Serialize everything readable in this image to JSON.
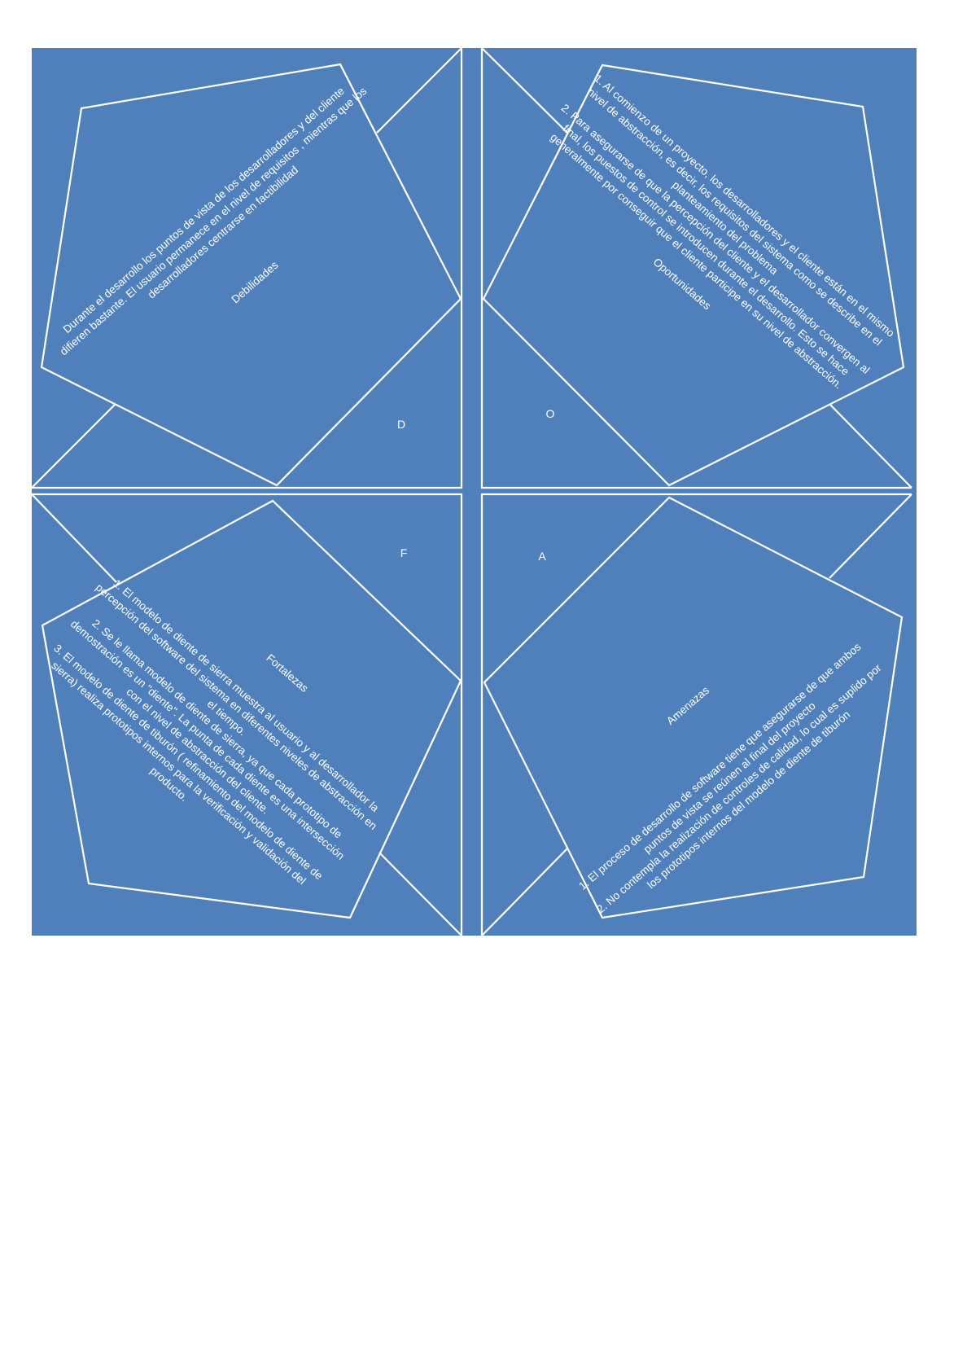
{
  "colors": {
    "background": "#5080BC",
    "lines": "#FFFFFF",
    "page": "#FFFFFF"
  },
  "quadrants": {
    "debilidades": {
      "title": "Debilidades",
      "letter": "D",
      "body": [
        "Durante el desarrollo los  puntos de vista de los desarrolladores y del cliente",
        "difieren bastante. El usuario permanece en el nivel de requisitos , mientras que los",
        "desarrolladores centrarse en factibilidad"
      ]
    },
    "oportunidades": {
      "title": "Oportunidades",
      "letter": "O",
      "body": [
        "1. Al comienzo de un proyecto, los desarrolladores y el cliente están en el mismo",
        "nivel de abstracción, es decir, los requisitos del sistema como se describe en el",
        "planteamiento del problema",
        "2. Para asegurarse de que la percepción del cliente y el desarrollador convergen al",
        "final, los puestos de control se introducen durante el desarrollo. Esto se hace",
        "generalmente por conseguir que el cliente participe en su nivel de abstracción."
      ]
    },
    "fortalezas": {
      "title": "Fortalezas",
      "letter": "F",
      "body": [
        "1. El modelo de diente de sierra muestra al usuario y al desarrollador la",
        "percepción del software del sistema en diferentes niveles de abstracción en",
        "el tiempo.",
        "2. Se le llama modelo de diente de sierra, ya que cada prototipo de",
        "demostración es un \"diente\". La punta de cada diente es una intersección",
        "con el nivel de abstracción del cliente.",
        "3. El modelo de diente de tiburón ( refinamiento del modelo de diente de",
        "sierra) realiza prototipos internos para la verificación y validación del",
        "producto."
      ]
    },
    "amenazas": {
      "title": "Amenazas",
      "letter": "A",
      "body": [
        "1. El proceso de desarrollo de software tiene que asegurarse de que ambos",
        "puntos de vista se reúnen al final del proyecto",
        "2. No contempla la realización de controles de calidad, lo cual es suplido por",
        "los prototipos internos del modelo de diente de tiburón"
      ]
    }
  }
}
